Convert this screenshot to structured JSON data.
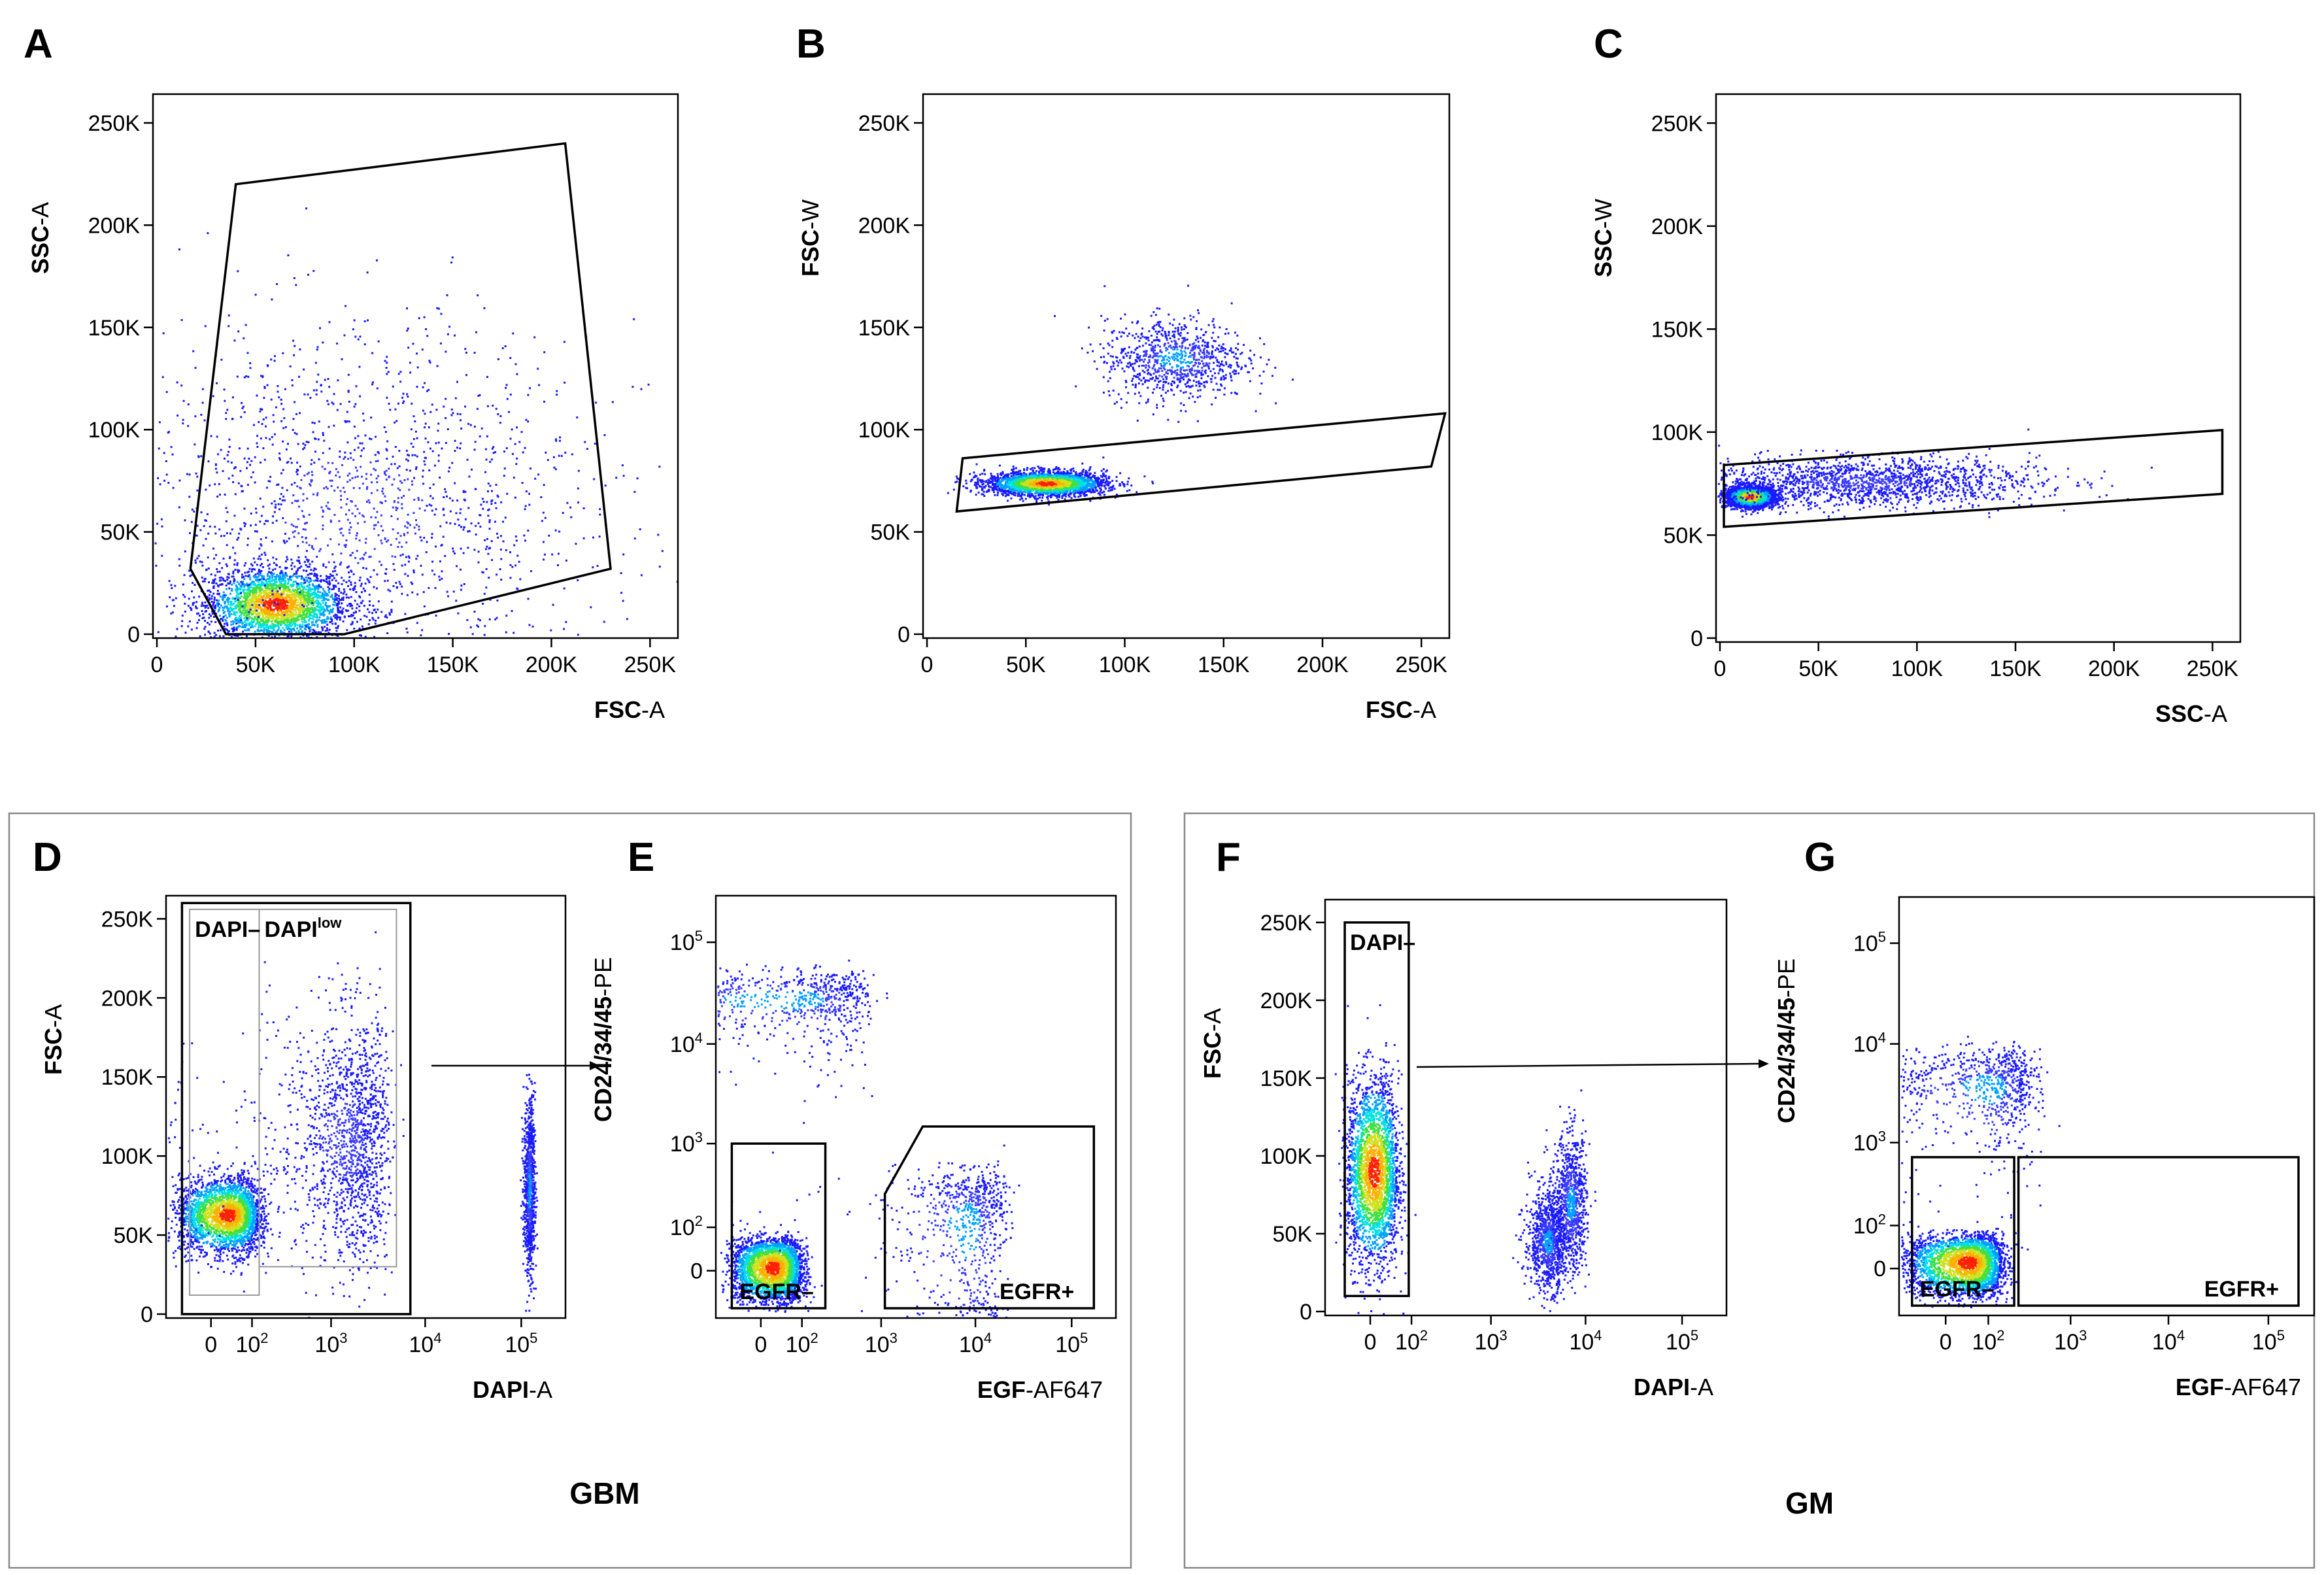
{
  "figure": {
    "background": "#ffffff",
    "point_colors": [
      "#1a1aff",
      "#3a3aff",
      "#00a0ff",
      "#00e0e0",
      "#40e040",
      "#d0e020",
      "#ffb000",
      "#ff2000"
    ],
    "groups": [
      {
        "label": "GBM"
      },
      {
        "label": "GM"
      }
    ]
  },
  "chart_data": [
    {
      "panel": "A",
      "type": "scatter",
      "xlabel_bold": "FSC",
      "xlabel_rest": "-A",
      "ylabel_bold": "SSC",
      "ylabel_rest": "-A",
      "x_ticks": [
        "0",
        "50K",
        "100K",
        "150K",
        "200K",
        "250K"
      ],
      "y_ticks": [
        "0",
        "50K",
        "100K",
        "150K",
        "200K",
        "250K"
      ],
      "xlim": [
        0,
        262144
      ],
      "ylim": [
        0,
        262144
      ],
      "gates": [
        {
          "shape": "polygon",
          "points": [
            [
              17000,
              32000
            ],
            [
              40000,
              220000
            ],
            [
              207000,
              240000
            ],
            [
              230000,
              32000
            ],
            [
              95000,
              0
            ],
            [
              35000,
              0
            ]
          ]
        }
      ],
      "gate_labels": [],
      "populations": [
        {
          "center": [
            60000,
            15000
          ],
          "spread": [
            18000,
            9000
          ],
          "share": "main"
        },
        {
          "center": [
            100000,
            60000
          ],
          "spread": [
            60000,
            45000
          ],
          "share": "diffuse"
        }
      ]
    },
    {
      "panel": "B",
      "type": "scatter",
      "xlabel_bold": "FSC",
      "xlabel_rest": "-A",
      "ylabel_bold": "FSC",
      "ylabel_rest": "-W",
      "x_ticks": [
        "0",
        "50K",
        "100K",
        "150K",
        "200K",
        "250K"
      ],
      "y_ticks": [
        "0",
        "50K",
        "100K",
        "150K",
        "200K",
        "250K"
      ],
      "xlim": [
        0,
        262144
      ],
      "ylim": [
        0,
        262144
      ],
      "gates": [
        {
          "shape": "polygon",
          "points": [
            [
              18000,
              86000
            ],
            [
              262000,
              108000
            ],
            [
              255000,
              82000
            ],
            [
              15000,
              60000
            ]
          ]
        }
      ],
      "gate_labels": [],
      "populations": [
        {
          "center": [
            60000,
            74000
          ],
          "spread": [
            15000,
            3000
          ],
          "share": "main"
        },
        {
          "center": [
            125000,
            135000
          ],
          "spread": [
            18000,
            10000
          ],
          "share": "secondary"
        }
      ]
    },
    {
      "panel": "C",
      "type": "scatter",
      "xlabel_bold": "SSC",
      "xlabel_rest": "-A",
      "ylabel_bold": "SSC",
      "ylabel_rest": "-W",
      "x_ticks": [
        "0",
        "50K",
        "100K",
        "150K",
        "200K",
        "250K"
      ],
      "y_ticks": [
        "0",
        "50K",
        "100K",
        "150K",
        "200K",
        "250K"
      ],
      "xlim": [
        0,
        262144
      ],
      "ylim": [
        0,
        262144
      ],
      "gates": [
        {
          "shape": "polygon",
          "points": [
            [
              2000,
              84000
            ],
            [
              255000,
              101000
            ],
            [
              255000,
              70000
            ],
            [
              2000,
              54000
            ]
          ]
        }
      ],
      "gate_labels": [],
      "populations": [
        {
          "center": [
            15000,
            69000
          ],
          "spread": [
            6000,
            2500
          ],
          "share": "main"
        },
        {
          "center": [
            70000,
            76000
          ],
          "spread": [
            45000,
            6000
          ],
          "share": "diffuse"
        }
      ]
    },
    {
      "panel": "D",
      "type": "scatter",
      "xlabel_bold": "DAPI",
      "xlabel_rest": "-A",
      "ylabel_bold": "FSC",
      "ylabel_rest": "-A",
      "x_scale": "biexponential",
      "x_ticks": [
        "0",
        "10^2",
        "10^3",
        "10^4",
        "10^5"
      ],
      "y_ticks": [
        "0",
        "50K",
        "100K",
        "150K",
        "200K",
        "250K"
      ],
      "xlim": [
        -100,
        262144
      ],
      "ylim": [
        0,
        262144
      ],
      "gates": [
        {
          "shape": "rect",
          "x": [
            -40,
            130
          ],
          "y": [
            12000,
            256000
          ],
          "style": "thin-grey"
        },
        {
          "shape": "rect",
          "x": [
            130,
            5000
          ],
          "y": [
            30000,
            256000
          ],
          "style": "thin-grey"
        },
        {
          "shape": "rect",
          "x": [
            -60,
            7000
          ],
          "y": [
            0,
            260000
          ],
          "style": "bold"
        }
      ],
      "gate_labels": [
        {
          "text": "DAPI–",
          "sup": ""
        },
        {
          "text": "DAPI",
          "sup": "low"
        }
      ],
      "populations": [
        {
          "center": [
            30,
            63000
          ],
          "spread": [
            50,
            12000
          ],
          "share": "main"
        },
        {
          "center": [
            1500,
            110000
          ],
          "spread": [
            1200,
            40000
          ],
          "share": "diffuse"
        },
        {
          "center": [
            120000,
            80000
          ],
          "spread": [
            8000,
            28000
          ],
          "share": "secondary"
        }
      ]
    },
    {
      "panel": "E",
      "type": "scatter",
      "xlabel_bold": "EGF",
      "xlabel_rest": "-AF647",
      "ylabel_bold": "CD24/34/45",
      "ylabel_rest": "-PE",
      "x_scale": "biexponential",
      "y_scale": "biexponential",
      "x_ticks": [
        "0",
        "10^2",
        "10^3",
        "10^4",
        "10^5"
      ],
      "y_ticks": [
        "0",
        "10^2",
        "10^3",
        "10^4",
        "10^5"
      ],
      "xlim": [
        -100,
        262144
      ],
      "ylim": [
        -100,
        262144
      ],
      "gates": [
        {
          "shape": "rect",
          "x": [
            -60,
            220
          ],
          "y": [
            -80,
            1000
          ],
          "style": "bold"
        },
        {
          "shape": "polygon",
          "points": [
            [
              1100,
              -80
            ],
            [
              1100,
              280
            ],
            [
              2800,
              1500
            ],
            [
              170000,
              1500
            ],
            [
              170000,
              -80
            ]
          ],
          "style": "bold"
        }
      ],
      "gate_labels": [
        {
          "text": "EGFR–",
          "sup": ""
        },
        {
          "text": "EGFR+",
          "sup": ""
        }
      ],
      "populations": [
        {
          "center": [
            20,
            5
          ],
          "spread": [
            40,
            30
          ],
          "share": "main"
        },
        {
          "center": [
            60,
            28000
          ],
          "spread": [
            300,
            12000
          ],
          "share": "secondary"
        },
        {
          "center": [
            8000,
            120
          ],
          "spread": [
            6000,
            200
          ],
          "share": "secondary"
        }
      ]
    },
    {
      "panel": "F",
      "type": "scatter",
      "xlabel_bold": "DAPI",
      "xlabel_rest": "-A",
      "ylabel_bold": "FSC",
      "ylabel_rest": "-A",
      "x_scale": "biexponential",
      "x_ticks": [
        "0",
        "10^2",
        "10^3",
        "10^4",
        "10^5"
      ],
      "y_ticks": [
        "0",
        "50K",
        "100K",
        "150K",
        "200K",
        "250K"
      ],
      "xlim": [
        -100,
        262144
      ],
      "ylim": [
        0,
        262144
      ],
      "gates": [
        {
          "shape": "rect",
          "x": [
            -50,
            90
          ],
          "y": [
            10000,
            250000
          ],
          "style": "bold"
        }
      ],
      "gate_labels": [
        {
          "text": "DAPI–",
          "sup": ""
        }
      ],
      "populations": [
        {
          "center": [
            5,
            90000
          ],
          "spread": [
            25,
            30000
          ],
          "share": "main"
        },
        {
          "center": [
            4000,
            45000
          ],
          "spread": [
            900,
            15000
          ],
          "share": "secondary"
        },
        {
          "center": [
            7000,
            70000
          ],
          "spread": [
            1500,
            22000
          ],
          "share": "secondary"
        }
      ]
    },
    {
      "panel": "G",
      "type": "scatter",
      "xlabel_bold": "EGF",
      "xlabel_rest": "-AF647",
      "ylabel_bold": "CD24/34/45",
      "ylabel_rest": "-PE",
      "x_scale": "biexponential",
      "y_scale": "biexponential",
      "x_ticks": [
        "0",
        "10^2",
        "10^3",
        "10^4",
        "10^5"
      ],
      "y_ticks": [
        "0",
        "10^2",
        "10^3",
        "10^4",
        "10^5"
      ],
      "xlim": [
        -100,
        262144
      ],
      "ylim": [
        -100,
        262144
      ],
      "gates": [
        {
          "shape": "rect",
          "x": [
            -70,
            230
          ],
          "y": [
            -80,
            700
          ],
          "style": "bold"
        },
        {
          "shape": "rect",
          "x": [
            260,
            200000
          ],
          "y": [
            -80,
            700
          ],
          "style": "bold"
        }
      ],
      "gate_labels": [
        {
          "text": "EGFR–",
          "sup": ""
        },
        {
          "text": "EGFR+",
          "sup": ""
        }
      ],
      "populations": [
        {
          "center": [
            40,
            10
          ],
          "spread": [
            60,
            30
          ],
          "share": "main"
        },
        {
          "center": [
            100,
            3800
          ],
          "spread": [
            150,
            2500
          ],
          "share": "secondary"
        }
      ]
    }
  ]
}
